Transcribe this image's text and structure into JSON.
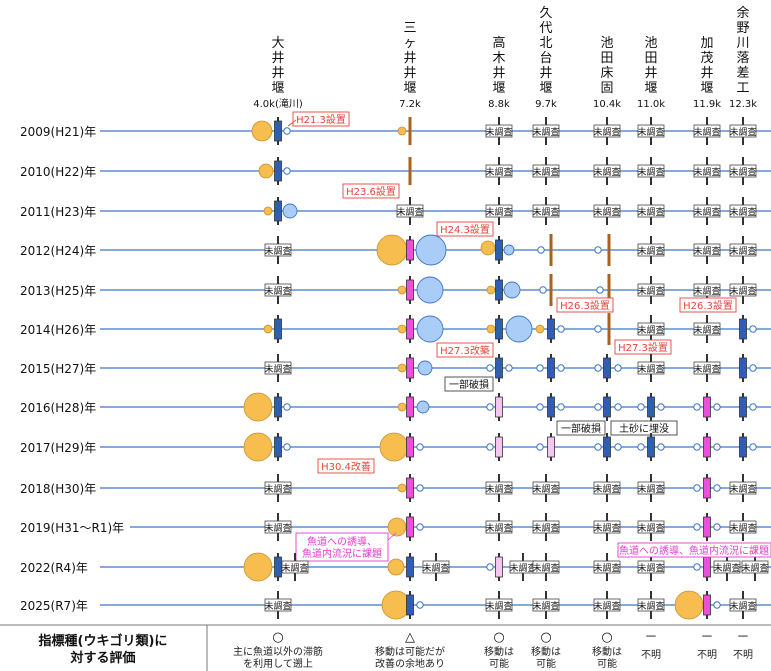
{
  "weirs": [
    {
      "name": "大井井堰",
      "dist": "4.0k(滝川)"
    },
    {
      "name": "三ヶ井井堰",
      "dist": "7.2k"
    },
    {
      "name": "高木井堰",
      "dist": "8.8k"
    },
    {
      "name": "久代北台井堰",
      "dist": "9.7k"
    },
    {
      "name": "池田床固",
      "dist": "10.4k"
    },
    {
      "name": "池田井堰",
      "dist": "11.0k"
    },
    {
      "name": "加茂井堰",
      "dist": "11.9k"
    },
    {
      "name": "余野川落差工",
      "dist": "12.3k"
    }
  ],
  "years": [
    "2009(H21)年",
    "2010(H22)年",
    "2011(H23)年",
    "2012(H24)年",
    "2013(H25)年",
    "2014(H26)年",
    "2015(H27)年",
    "2016(H28)年",
    "2017(H29)年",
    "2018(H30)年",
    "2019(H31～R1)年",
    "2022(R4)年",
    "2025(R7)年"
  ],
  "unsurveyed": "未調査",
  "notes": [
    "H21.3設置",
    "H23.6設置",
    "H24.3設置",
    "H26.3設置",
    "H26.3設置",
    "H27.3設置",
    "H27.3改築",
    "一部破損",
    "一部破損",
    "土砂に埋没",
    "H30.4改善"
  ],
  "magenta_notes": [
    "魚道への誘導、\n魚道内流況に課題",
    "魚道への誘導、魚道内流況に課題"
  ],
  "eval": {
    "header": "指標種(ウキゴリ類)に\n対する評価",
    "items": [
      {
        "symbol": "○",
        "text": "主に魚道以外の滞筋\nを利用して遡上"
      },
      {
        "symbol": "△",
        "text": "移動は可能だが\n改善の余地あり"
      },
      {
        "symbol": "○",
        "text": "移動は\n可能"
      },
      {
        "symbol": "○",
        "text": "移動は\n可能"
      },
      {
        "symbol": "○",
        "text": "移動は\n可能"
      },
      {
        "symbol": "－",
        "text": "不明"
      },
      {
        "symbol": "－",
        "text": "不明"
      },
      {
        "symbol": "－",
        "text": "不明"
      }
    ]
  },
  "colors": {
    "line": "#5b8fd6",
    "orange": "#f7bd4f",
    "orange_stroke": "#c9902a",
    "blue_fill": "#a9cdf7",
    "blue_stroke": "#3d74c9",
    "fishway": "#2e5fb5",
    "magenta": "#ee4fd6",
    "pink": "#f5c6ef",
    "note": "#e8453c",
    "magnote": "#e53cd0"
  }
}
